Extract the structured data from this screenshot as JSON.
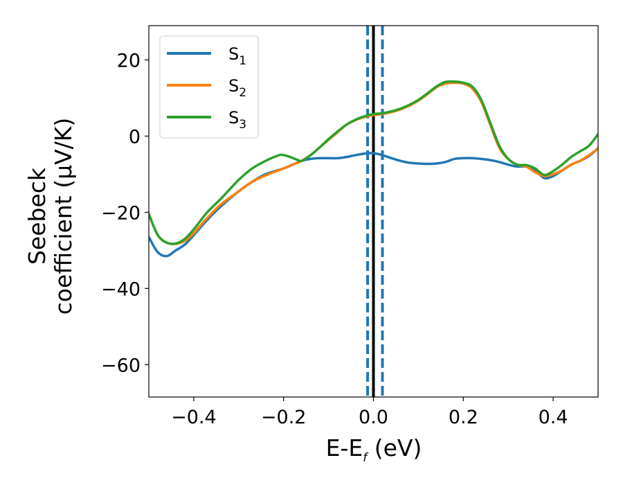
{
  "chart_data": {
    "type": "line",
    "xlabel": "E-E",
    "xlabel_subscript": "f",
    "xlabel_suffix": " (eV)",
    "ylabel_line1": "Seebeck",
    "ylabel_line2": "coefficient  (μV/K)",
    "xlim": [
      -0.5,
      0.5
    ],
    "ylim": [
      -68.5,
      29
    ],
    "xticks": [
      -0.4,
      -0.2,
      0.0,
      0.2,
      0.4
    ],
    "xtick_labels": [
      "−0.4",
      "−0.2",
      "0.0",
      "0.2",
      "0.4"
    ],
    "yticks": [
      -60,
      -40,
      -20,
      0,
      20
    ],
    "ytick_labels": [
      "−60",
      "−40",
      "−20",
      "0",
      "20"
    ],
    "grid": false,
    "legend_position": "top-left",
    "series": [
      {
        "name": "S",
        "subscript": "1",
        "color": "#1f77b4",
        "x": [
          -0.5,
          -0.48,
          -0.46,
          -0.44,
          -0.42,
          -0.4,
          -0.37,
          -0.34,
          -0.3,
          -0.27,
          -0.24,
          -0.2,
          -0.18,
          -0.16,
          -0.14,
          -0.12,
          -0.1,
          -0.08,
          -0.06,
          -0.04,
          -0.02,
          0.0,
          0.02,
          0.04,
          0.06,
          0.08,
          0.1,
          0.12,
          0.14,
          0.16,
          0.18,
          0.2,
          0.22,
          0.24,
          0.26,
          0.28,
          0.3,
          0.32,
          0.34,
          0.36,
          0.38,
          0.4,
          0.42,
          0.44,
          0.46,
          0.48,
          0.5
        ],
        "y": [
          -26.5,
          -30.5,
          -31.5,
          -30.0,
          -28.5,
          -26.0,
          -22.0,
          -18.5,
          -14.5,
          -12.0,
          -10.0,
          -8.5,
          -7.5,
          -6.5,
          -6.0,
          -5.8,
          -5.8,
          -5.8,
          -5.5,
          -5.0,
          -4.6,
          -4.5,
          -5.0,
          -5.8,
          -6.5,
          -7.0,
          -7.2,
          -7.3,
          -7.2,
          -6.8,
          -6.0,
          -5.8,
          -5.8,
          -6.0,
          -6.3,
          -6.8,
          -7.5,
          -8.0,
          -8.0,
          -9.0,
          -11.0,
          -10.5,
          -9.0,
          -7.5,
          -6.5,
          -5.2,
          -3.2
        ]
      },
      {
        "name": "S",
        "subscript": "2",
        "color": "#ff7f0e",
        "x": [
          -0.5,
          -0.48,
          -0.46,
          -0.44,
          -0.42,
          -0.4,
          -0.37,
          -0.34,
          -0.3,
          -0.27,
          -0.24,
          -0.2,
          -0.18,
          -0.16,
          -0.14,
          -0.12,
          -0.1,
          -0.08,
          -0.06,
          -0.04,
          -0.02,
          0.0,
          0.02,
          0.04,
          0.06,
          0.08,
          0.1,
          0.12,
          0.14,
          0.16,
          0.18,
          0.2,
          0.22,
          0.24,
          0.26,
          0.28,
          0.3,
          0.32,
          0.34,
          0.36,
          0.38,
          0.4,
          0.42,
          0.44,
          0.46,
          0.48,
          0.5
        ],
        "y": [
          -20.5,
          -26.0,
          -28.0,
          -28.3,
          -27.5,
          -25.5,
          -21.5,
          -18.0,
          -14.5,
          -12.0,
          -10.3,
          -8.5,
          -7.5,
          -6.5,
          -5.0,
          -3.0,
          -1.0,
          1.0,
          3.0,
          4.2,
          5.0,
          5.5,
          5.8,
          6.3,
          7.0,
          8.0,
          9.3,
          11.0,
          12.8,
          13.8,
          14.0,
          13.8,
          12.5,
          9.0,
          3.0,
          -3.0,
          -6.0,
          -7.5,
          -8.0,
          -9.5,
          -10.5,
          -10.0,
          -9.0,
          -7.5,
          -6.5,
          -5.0,
          -3.3
        ]
      },
      {
        "name": "S",
        "subscript": "3",
        "color": "#2ca02c",
        "x": [
          -0.5,
          -0.48,
          -0.46,
          -0.44,
          -0.42,
          -0.4,
          -0.37,
          -0.34,
          -0.3,
          -0.27,
          -0.24,
          -0.21,
          -0.2,
          -0.19,
          -0.17,
          -0.16,
          -0.14,
          -0.12,
          -0.1,
          -0.08,
          -0.06,
          -0.04,
          -0.02,
          0.0,
          0.02,
          0.04,
          0.06,
          0.08,
          0.1,
          0.12,
          0.14,
          0.16,
          0.18,
          0.2,
          0.22,
          0.24,
          0.26,
          0.28,
          0.3,
          0.32,
          0.34,
          0.36,
          0.38,
          0.4,
          0.42,
          0.44,
          0.46,
          0.48,
          0.5
        ],
        "y": [
          -20.5,
          -26.0,
          -28.0,
          -28.2,
          -27.0,
          -24.5,
          -20.0,
          -16.5,
          -11.5,
          -8.5,
          -6.5,
          -5.0,
          -5.0,
          -5.3,
          -6.2,
          -6.5,
          -5.0,
          -3.0,
          -0.8,
          1.2,
          3.0,
          4.3,
          5.2,
          5.8,
          6.0,
          6.5,
          7.2,
          8.2,
          9.5,
          11.2,
          13.0,
          14.2,
          14.3,
          14.0,
          13.0,
          9.5,
          3.5,
          -2.5,
          -6.0,
          -7.5,
          -7.6,
          -8.5,
          -10.2,
          -9.2,
          -7.5,
          -5.5,
          -4.0,
          -2.5,
          0.5
        ]
      }
    ],
    "vertical_lines": [
      {
        "x": 0.0,
        "style": "solid",
        "color": "#000000"
      },
      {
        "x": -0.013,
        "style": "dashed",
        "color": "#1f77b4"
      },
      {
        "x": 0.02,
        "style": "dashed",
        "color": "#1f77b4"
      }
    ]
  }
}
